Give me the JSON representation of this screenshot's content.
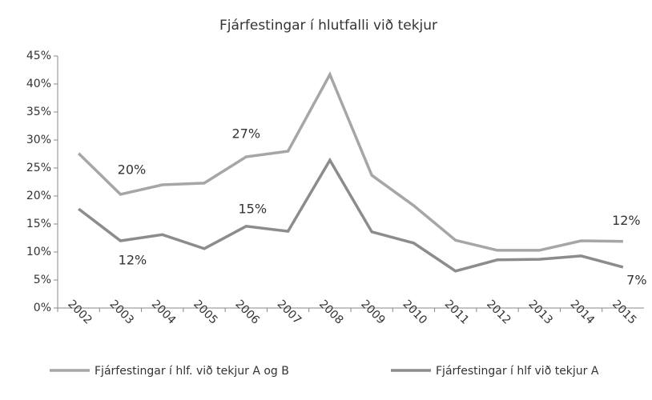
{
  "chart_data": {
    "type": "line",
    "title": "Fjárfestingar í hlutfalli við tekjur",
    "categories": [
      "2002",
      "2003",
      "2004",
      "2005",
      "2006",
      "2007",
      "2008",
      "2009",
      "2010",
      "2011",
      "2012",
      "2013",
      "2014",
      "2015"
    ],
    "series": [
      {
        "name": "Fjárfestingar í hlf. við tekjur A og B",
        "color": "#a6a6a6",
        "values": [
          27.6,
          20.3,
          22,
          22.3,
          27,
          28,
          41.7,
          23.7,
          18.3,
          12.1,
          10.3,
          10.3,
          12,
          11.9
        ],
        "value_labels": [
          null,
          "20%",
          null,
          null,
          "27%",
          null,
          null,
          null,
          null,
          null,
          null,
          null,
          null,
          "12%"
        ]
      },
      {
        "name": "Fjárfestingar í hlf við tekjur A",
        "color": "#8c8c8c",
        "values": [
          17.7,
          12,
          13.1,
          10.6,
          14.6,
          13.7,
          26.4,
          13.6,
          11.6,
          6.6,
          8.6,
          8.7,
          9.3,
          7.3
        ],
        "value_labels": [
          null,
          "12%",
          null,
          null,
          "15%",
          null,
          null,
          null,
          null,
          null,
          null,
          null,
          null,
          "7%"
        ]
      }
    ],
    "ylim": [
      0,
      45
    ],
    "yticks": [
      {
        "value": 0,
        "label": "0%"
      },
      {
        "value": 5,
        "label": "5%"
      },
      {
        "value": 10,
        "label": "10%"
      },
      {
        "value": 15,
        "label": "15%"
      },
      {
        "value": 20,
        "label": "20%"
      },
      {
        "value": 25,
        "label": "25%"
      },
      {
        "value": 30,
        "label": "30%"
      },
      {
        "value": 35,
        "label": "35%"
      },
      {
        "value": 40,
        "label": "40%"
      },
      {
        "value": 45,
        "label": "45%"
      }
    ],
    "grid": false,
    "legend": "bottom"
  }
}
